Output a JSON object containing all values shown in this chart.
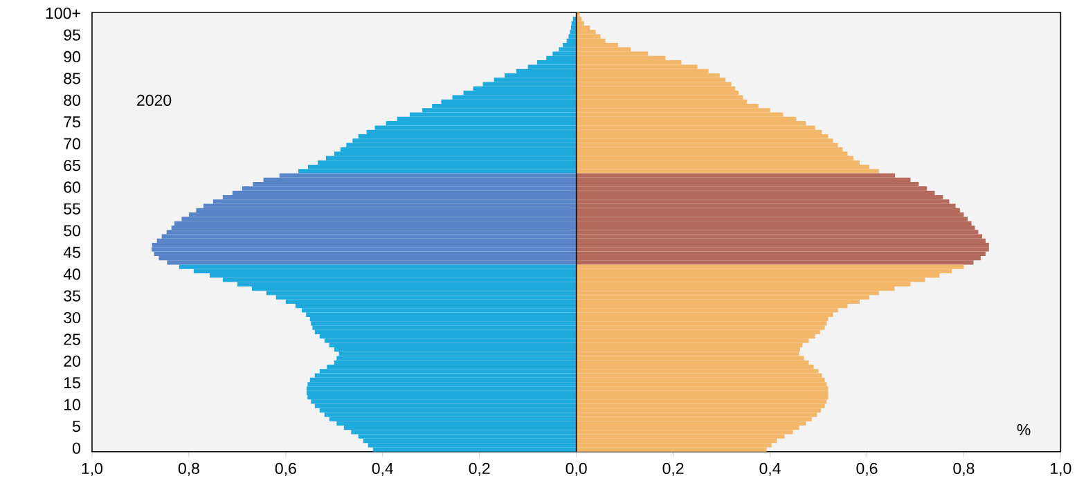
{
  "chart_data": {
    "type": "bar",
    "orientation": "horizontal",
    "stacked": true,
    "annotations": [
      "2020",
      "%"
    ],
    "categories": [
      "100+",
      null,
      null,
      null,
      null,
      "95",
      null,
      null,
      null,
      null,
      "90",
      null,
      null,
      null,
      null,
      "85",
      null,
      null,
      null,
      null,
      "80",
      null,
      null,
      null,
      null,
      "75",
      null,
      null,
      null,
      null,
      "70",
      null,
      null,
      null,
      null,
      "65",
      null,
      null,
      null,
      null,
      "60",
      null,
      null,
      null,
      null,
      "55",
      null,
      null,
      null,
      null,
      "50",
      null,
      null,
      null,
      null,
      "45",
      null,
      null,
      null,
      null,
      "40",
      null,
      null,
      null,
      null,
      "35",
      null,
      null,
      null,
      null,
      "30",
      null,
      null,
      null,
      null,
      "25",
      null,
      null,
      null,
      null,
      "20",
      null,
      null,
      null,
      null,
      "15",
      null,
      null,
      null,
      null,
      "10",
      null,
      null,
      null,
      null,
      "5",
      null,
      null,
      null,
      null,
      "0"
    ],
    "xlim": [
      -1,
      1
    ],
    "xticks": [
      {
        "value": -1,
        "label": "1,0"
      },
      {
        "value": -0.8,
        "label": "0,8"
      },
      {
        "value": -0.6,
        "label": "0,6"
      },
      {
        "value": -0.4,
        "label": "0,4"
      },
      {
        "value": -0.2,
        "label": "0,2"
      },
      {
        "value": 0,
        "label": "0,0"
      },
      {
        "value": 0.2,
        "label": "0,2"
      },
      {
        "value": 0.4,
        "label": "0,4"
      },
      {
        "value": 0.6,
        "label": "0,6"
      },
      {
        "value": 0.8,
        "label": "0,8"
      },
      {
        "value": 1,
        "label": "1,0"
      }
    ],
    "ref_lines": [
      {
        "axis": "x",
        "value": 0,
        "color": "#000000"
      }
    ],
    "series": [
      {
        "values": [
          null,
          -0.007,
          -0.01,
          -0.011,
          -0.013,
          -0.016,
          -0.02,
          -0.028,
          -0.036,
          -0.049,
          -0.062,
          -0.081,
          -0.1,
          -0.124,
          -0.148,
          -0.17,
          -0.193,
          -0.213,
          -0.233,
          -0.256,
          -0.279,
          -0.298,
          -0.318,
          -0.344,
          -0.37,
          -0.393,
          -0.416,
          -0.433,
          -0.45,
          -0.462,
          -0.475,
          -0.487,
          -0.5,
          -0.517,
          -0.534,
          -0.554,
          -0.574,
          -0.613,
          -0.646,
          -0.668,
          -0.69,
          -0.71,
          -0.73,
          -0.75,
          -0.77,
          -0.785,
          -0.8,
          -0.815,
          -0.83,
          -0.836,
          -0.846,
          -0.856,
          -0.866,
          -0.876,
          -0.877,
          -0.872,
          -0.862,
          -0.845,
          -0.82,
          -0.79,
          -0.757,
          -0.73,
          -0.7,
          -0.67,
          -0.64,
          -0.62,
          -0.6,
          -0.58,
          -0.567,
          -0.558,
          -0.55,
          -0.548,
          -0.545,
          -0.54,
          -0.53,
          -0.52,
          -0.51,
          -0.5,
          -0.49,
          -0.495,
          -0.5,
          -0.515,
          -0.53,
          -0.54,
          -0.55,
          -0.555,
          -0.557,
          -0.557,
          -0.555,
          -0.548,
          -0.54,
          -0.53,
          -0.52,
          -0.51,
          -0.495,
          -0.48,
          -0.465,
          -0.45,
          -0.44,
          -0.43,
          -0.42
        ],
        "colors": [
          "#1eaadd",
          "#1eaadd",
          "#1eaadd",
          "#1eaadd",
          "#1eaadd",
          "#1eaadd",
          "#1eaadd",
          "#1eaadd",
          "#1eaadd",
          "#1eaadd",
          "#1eaadd",
          "#1eaadd",
          "#1eaadd",
          "#1eaadd",
          "#1eaadd",
          "#1eaadd",
          "#1eaadd",
          "#1eaadd",
          "#1eaadd",
          "#1eaadd",
          "#1eaadd",
          "#1eaadd",
          "#1eaadd",
          "#1eaadd",
          "#1eaadd",
          "#1eaadd",
          "#1eaadd",
          "#1eaadd",
          "#1eaadd",
          "#1eaadd",
          "#1eaadd",
          "#1eaadd",
          "#1eaadd",
          "#1eaadd",
          "#1eaadd",
          "#1eaadd",
          "#1eaadd",
          "#5a84c8",
          "#5a84c8",
          "#5a84c8",
          "#5a84c8",
          "#5a84c8",
          "#5a84c8",
          "#5a84c8",
          "#5a84c8",
          "#5a84c8",
          "#5a84c8",
          "#5a84c8",
          "#5a84c8",
          "#5a84c8",
          "#5a84c8",
          "#5a84c8",
          "#5a84c8",
          "#5a84c8",
          "#5a84c8",
          "#5a84c8",
          "#5a84c8",
          "#5a84c8",
          "#1eaadd",
          "#1eaadd",
          "#1eaadd",
          "#1eaadd",
          "#1eaadd",
          "#1eaadd",
          "#1eaadd",
          "#1eaadd",
          "#1eaadd",
          "#1eaadd",
          "#1eaadd",
          "#1eaadd",
          "#1eaadd",
          "#1eaadd",
          "#1eaadd",
          "#1eaadd",
          "#1eaadd",
          "#1eaadd",
          "#1eaadd",
          "#1eaadd",
          "#1eaadd",
          "#1eaadd",
          "#1eaadd",
          "#1eaadd",
          "#1eaadd",
          "#1eaadd",
          "#1eaadd",
          "#1eaadd",
          "#1eaadd",
          "#1eaadd",
          "#1eaadd",
          "#1eaadd",
          "#1eaadd",
          "#1eaadd",
          "#1eaadd",
          "#1eaadd",
          "#1eaadd",
          "#1eaadd",
          "#1eaadd",
          "#1eaadd",
          "#1eaadd",
          "#1eaadd",
          "#1eaadd"
        ]
      },
      {
        "values": [
          0.007,
          0.011,
          0.016,
          0.028,
          0.04,
          0.05,
          0.06,
          0.086,
          0.112,
          0.148,
          0.184,
          0.217,
          0.25,
          0.273,
          0.296,
          0.308,
          0.32,
          0.328,
          0.335,
          0.344,
          0.352,
          0.376,
          0.4,
          0.427,
          0.454,
          0.474,
          0.493,
          0.507,
          0.52,
          0.53,
          0.54,
          0.55,
          0.56,
          0.572,
          0.585,
          0.605,
          0.625,
          0.658,
          0.69,
          0.707,
          0.724,
          0.74,
          0.757,
          0.77,
          0.783,
          0.792,
          0.8,
          0.808,
          0.816,
          0.823,
          0.83,
          0.838,
          0.845,
          0.852,
          0.852,
          0.845,
          0.835,
          0.82,
          0.8,
          0.775,
          0.75,
          0.72,
          0.69,
          0.657,
          0.625,
          0.605,
          0.585,
          0.56,
          0.54,
          0.53,
          0.52,
          0.517,
          0.513,
          0.503,
          0.493,
          0.48,
          0.467,
          0.462,
          0.46,
          0.47,
          0.48,
          0.49,
          0.5,
          0.507,
          0.513,
          0.517,
          0.52,
          0.52,
          0.52,
          0.517,
          0.513,
          0.505,
          0.497,
          0.486,
          0.474,
          0.46,
          0.447,
          0.43,
          0.414,
          0.403,
          0.393
        ],
        "colors": [
          "#f3b76a",
          "#f3b76a",
          "#f3b76a",
          "#f3b76a",
          "#f3b76a",
          "#f3b76a",
          "#f3b76a",
          "#f3b76a",
          "#f3b76a",
          "#f3b76a",
          "#f3b76a",
          "#f3b76a",
          "#f3b76a",
          "#f3b76a",
          "#f3b76a",
          "#f3b76a",
          "#f3b76a",
          "#f3b76a",
          "#f3b76a",
          "#f3b76a",
          "#f3b76a",
          "#f3b76a",
          "#f3b76a",
          "#f3b76a",
          "#f3b76a",
          "#f3b76a",
          "#f3b76a",
          "#f3b76a",
          "#f3b76a",
          "#f3b76a",
          "#f3b76a",
          "#f3b76a",
          "#f3b76a",
          "#f3b76a",
          "#f3b76a",
          "#f3b76a",
          "#f3b76a",
          "#b56a5e",
          "#b56a5e",
          "#b56a5e",
          "#b56a5e",
          "#b56a5e",
          "#b56a5e",
          "#b56a5e",
          "#b56a5e",
          "#b56a5e",
          "#b56a5e",
          "#b56a5e",
          "#b56a5e",
          "#b56a5e",
          "#b56a5e",
          "#b56a5e",
          "#b56a5e",
          "#b56a5e",
          "#b56a5e",
          "#b56a5e",
          "#b56a5e",
          "#b56a5e",
          "#f3b76a",
          "#f3b76a",
          "#f3b76a",
          "#f3b76a",
          "#f3b76a",
          "#f3b76a",
          "#f3b76a",
          "#f3b76a",
          "#f3b76a",
          "#f3b76a",
          "#f3b76a",
          "#f3b76a",
          "#f3b76a",
          "#f3b76a",
          "#f3b76a",
          "#f3b76a",
          "#f3b76a",
          "#f3b76a",
          "#f3b76a",
          "#f3b76a",
          "#f3b76a",
          "#f3b76a",
          "#f3b76a",
          "#f3b76a",
          "#f3b76a",
          "#f3b76a",
          "#f3b76a",
          "#f3b76a",
          "#f3b76a",
          "#f3b76a",
          "#f3b76a",
          "#f3b76a",
          "#f3b76a",
          "#f3b76a",
          "#f3b76a",
          "#f3b76a",
          "#f3b76a",
          "#f3b76a",
          "#f3b76a",
          "#f3b76a",
          "#f3b76a",
          "#f3b76a",
          "#f3b76a"
        ]
      }
    ]
  }
}
